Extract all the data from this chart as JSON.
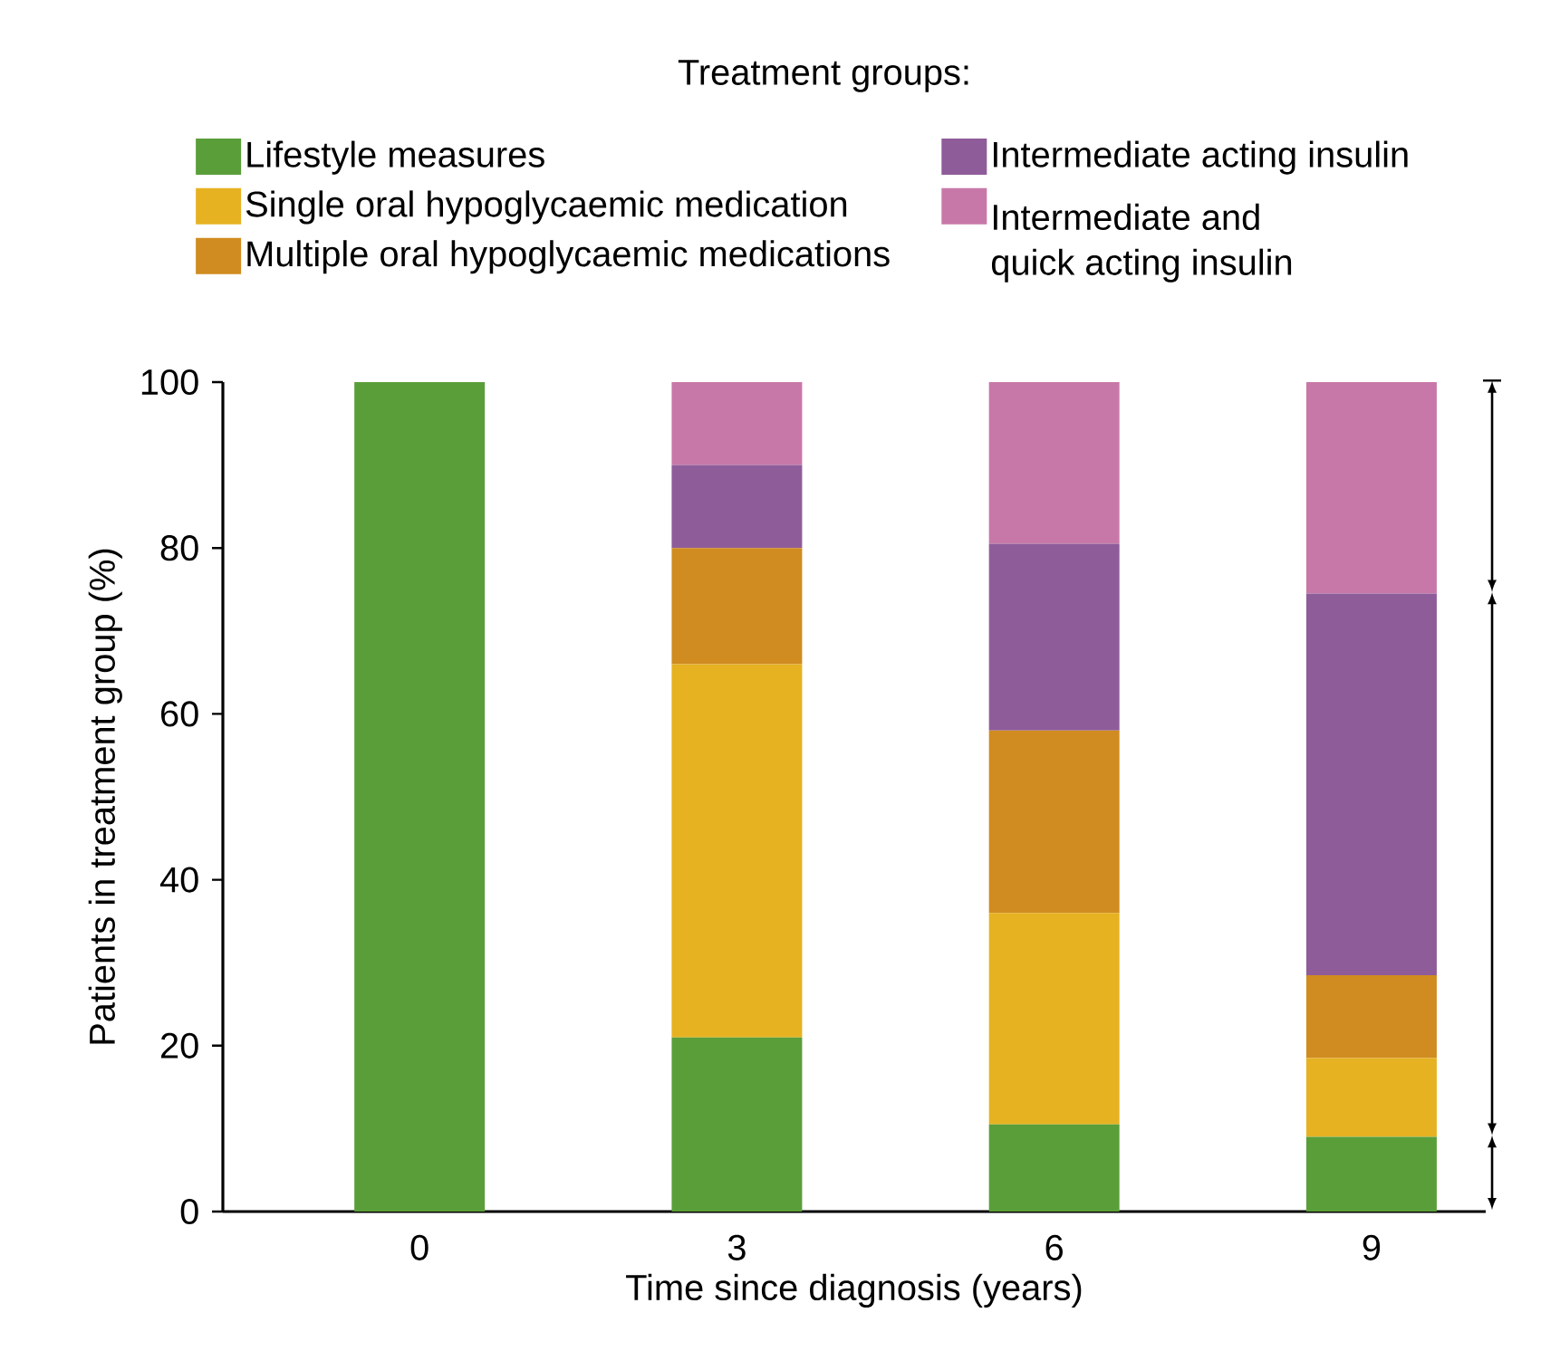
{
  "chart_data": {
    "type": "bar",
    "stacked": true,
    "legend_title": "Treatment groups:",
    "legend": "top",
    "xlabel": "Time since diagnosis (years)",
    "ylabel": "Patients in treatment group (%)",
    "categories": [
      "0",
      "3",
      "6",
      "9"
    ],
    "ylim": [
      0,
      100
    ],
    "yticks": [
      0,
      20,
      40,
      60,
      80,
      100
    ],
    "grid": false,
    "series": [
      {
        "name": "Lifestyle measures",
        "color": "#5a9e3a",
        "values": [
          100,
          21,
          10.5,
          9
        ]
      },
      {
        "name": "Single oral hypoglycaemic medication",
        "color": "#e6b222",
        "values": [
          0,
          45,
          25.5,
          9.5
        ]
      },
      {
        "name": "Multiple oral hypoglycaemic medications",
        "color": "#d08c20",
        "values": [
          0,
          14,
          22,
          10
        ]
      },
      {
        "name": "Intermediate acting insulin",
        "color": "#8f5c9a",
        "values": [
          0,
          10,
          22.5,
          46
        ]
      },
      {
        "name": "Intermediate and quick acting insulin",
        "color": "#c878a8",
        "values": [
          0,
          10,
          19.5,
          25.5
        ]
      }
    ]
  }
}
